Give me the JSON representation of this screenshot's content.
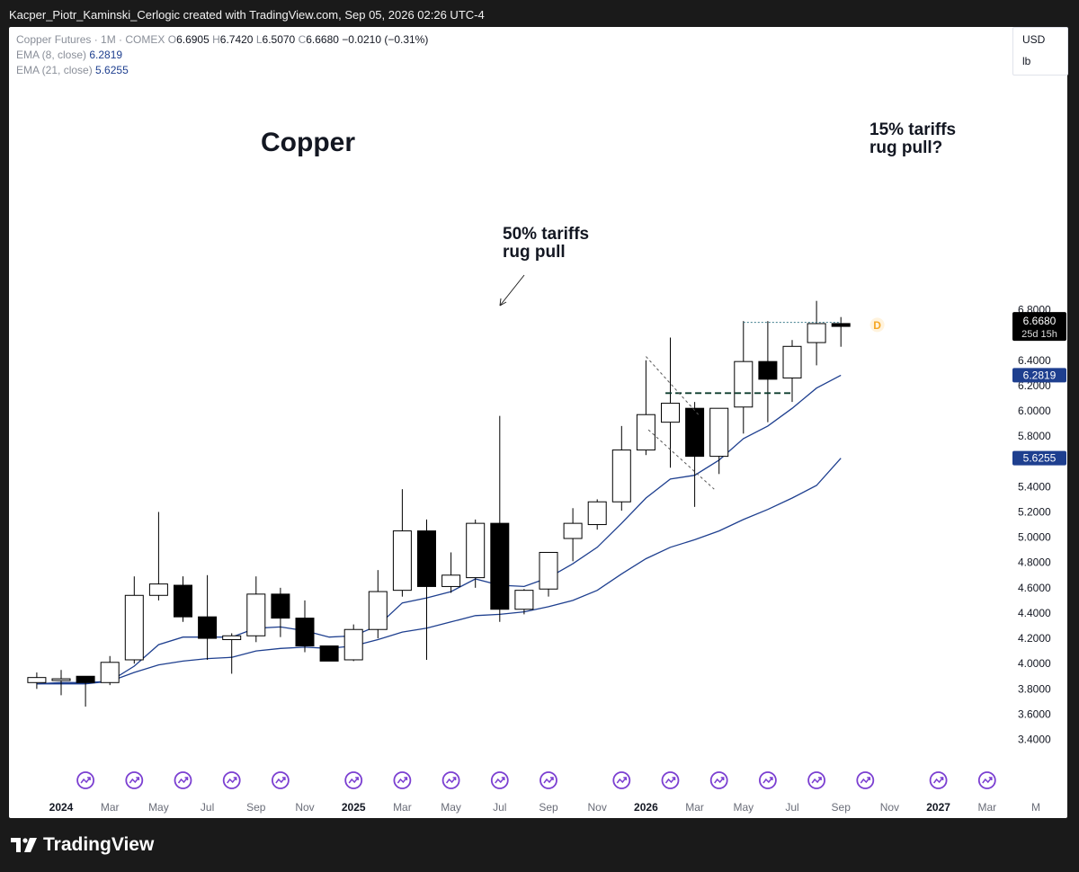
{
  "header": {
    "caption": "Kacper_Piotr_Kaminski_Cerlogic created with TradingView.com, Sep 05, 2026 02:26 UTC-4"
  },
  "legend": {
    "symbol": "Copper Futures · 1M · COMEX",
    "o_label": "O",
    "o": "6.6905",
    "h_label": "H",
    "h": "6.7420",
    "l_label": "L",
    "l": "6.5070",
    "c_label": "C",
    "c": "6.6680",
    "change": "−0.0210 (−0.31%)",
    "ema8_label": "EMA (8, close)",
    "ema8_value": "6.2819",
    "ema21_label": "EMA (21, close)",
    "ema21_value": "5.6255"
  },
  "units": {
    "currency": "USD",
    "unit": "lb"
  },
  "footer": {
    "logo": "TradingView"
  },
  "colors": {
    "ema": "#1e3f8f",
    "bull_fill": "#ffffff",
    "bear_fill": "#000000",
    "event_icon": "#7b3fd1",
    "dividend_badge": "#f5a623"
  },
  "chart_data": {
    "type": "candlestick",
    "title": "Copper",
    "y_ticks": [
      "3.4000",
      "3.6000",
      "3.8000",
      "4.0000",
      "4.2000",
      "4.4000",
      "4.6000",
      "4.8000",
      "5.0000",
      "5.2000",
      "5.4000",
      "5.6000",
      "5.8000",
      "6.0000",
      "6.2000",
      "6.4000",
      "6.6000",
      "6.8000"
    ],
    "ylim": [
      3.36,
      7.1
    ],
    "x_ticks": [
      {
        "label": "2024",
        "month": 0,
        "bold": true
      },
      {
        "label": "Mar",
        "month": 2
      },
      {
        "label": "May",
        "month": 4
      },
      {
        "label": "Jul",
        "month": 6
      },
      {
        "label": "Sep",
        "month": 8
      },
      {
        "label": "Nov",
        "month": 10
      },
      {
        "label": "2025",
        "month": 12,
        "bold": true
      },
      {
        "label": "Mar",
        "month": 14
      },
      {
        "label": "May",
        "month": 16
      },
      {
        "label": "Jul",
        "month": 18
      },
      {
        "label": "Sep",
        "month": 20
      },
      {
        "label": "Nov",
        "month": 22
      },
      {
        "label": "2026",
        "month": 24,
        "bold": true
      },
      {
        "label": "Mar",
        "month": 26
      },
      {
        "label": "May",
        "month": 28
      },
      {
        "label": "Jul",
        "month": 30
      },
      {
        "label": "Sep",
        "month": 32
      },
      {
        "label": "Nov",
        "month": 34
      },
      {
        "label": "2027",
        "month": 36,
        "bold": true
      },
      {
        "label": "Mar",
        "month": 38
      },
      {
        "label": "M",
        "month": 40
      }
    ],
    "candles": [
      {
        "t": -1,
        "o": 3.85,
        "h": 3.93,
        "l": 3.8,
        "c": 3.89
      },
      {
        "t": 0,
        "o": 3.88,
        "h": 3.95,
        "l": 3.75,
        "c": 3.88
      },
      {
        "t": 1,
        "o": 3.9,
        "h": 3.89,
        "l": 3.66,
        "c": 3.85
      },
      {
        "t": 2,
        "o": 3.85,
        "h": 4.06,
        "l": 3.83,
        "c": 4.01
      },
      {
        "t": 3,
        "o": 4.03,
        "h": 4.69,
        "l": 4.0,
        "c": 4.54
      },
      {
        "t": 4,
        "o": 4.54,
        "h": 5.2,
        "l": 4.5,
        "c": 4.63
      },
      {
        "t": 5,
        "o": 4.62,
        "h": 4.69,
        "l": 4.33,
        "c": 4.37
      },
      {
        "t": 6,
        "o": 4.37,
        "h": 4.7,
        "l": 4.03,
        "c": 4.2
      },
      {
        "t": 7,
        "o": 4.19,
        "h": 4.24,
        "l": 3.92,
        "c": 4.22
      },
      {
        "t": 8,
        "o": 4.22,
        "h": 4.69,
        "l": 4.17,
        "c": 4.55
      },
      {
        "t": 9,
        "o": 4.55,
        "h": 4.6,
        "l": 4.21,
        "c": 4.36
      },
      {
        "t": 10,
        "o": 4.36,
        "h": 4.5,
        "l": 4.09,
        "c": 4.14
      },
      {
        "t": 11,
        "o": 4.14,
        "h": 4.13,
        "l": 4.03,
        "c": 4.02
      },
      {
        "t": 12,
        "o": 4.03,
        "h": 4.31,
        "l": 4.02,
        "c": 4.27
      },
      {
        "t": 13,
        "o": 4.27,
        "h": 4.74,
        "l": 4.2,
        "c": 4.57
      },
      {
        "t": 14,
        "o": 4.58,
        "h": 5.38,
        "l": 4.53,
        "c": 5.05
      },
      {
        "t": 15,
        "o": 5.05,
        "h": 5.14,
        "l": 4.03,
        "c": 4.61
      },
      {
        "t": 16,
        "o": 4.61,
        "h": 4.88,
        "l": 4.56,
        "c": 4.7
      },
      {
        "t": 17,
        "o": 4.68,
        "h": 5.14,
        "l": 4.6,
        "c": 5.11
      },
      {
        "t": 18,
        "o": 5.11,
        "h": 5.96,
        "l": 4.33,
        "c": 4.43
      },
      {
        "t": 19,
        "o": 4.43,
        "h": 4.59,
        "l": 4.39,
        "c": 4.58
      },
      {
        "t": 20,
        "o": 4.59,
        "h": 4.87,
        "l": 4.53,
        "c": 4.88
      },
      {
        "t": 21,
        "o": 4.99,
        "h": 5.23,
        "l": 4.81,
        "c": 5.11
      },
      {
        "t": 22,
        "o": 5.1,
        "h": 5.3,
        "l": 5.06,
        "c": 5.28
      },
      {
        "t": 23,
        "o": 5.28,
        "h": 5.88,
        "l": 5.21,
        "c": 5.69
      },
      {
        "t": 24,
        "o": 5.69,
        "h": 6.4,
        "l": 5.65,
        "c": 5.97
      },
      {
        "t": 25,
        "o": 5.91,
        "h": 6.58,
        "l": 5.55,
        "c": 6.06
      },
      {
        "t": 26,
        "o": 6.02,
        "h": 6.07,
        "l": 5.24,
        "c": 5.64
      },
      {
        "t": 27,
        "o": 5.64,
        "h": 6.02,
        "l": 5.5,
        "c": 6.02
      },
      {
        "t": 28,
        "o": 6.03,
        "h": 6.71,
        "l": 5.82,
        "c": 6.39
      },
      {
        "t": 29,
        "o": 6.39,
        "h": 6.71,
        "l": 5.91,
        "c": 6.25
      },
      {
        "t": 30,
        "o": 6.26,
        "h": 6.56,
        "l": 6.07,
        "c": 6.51
      },
      {
        "t": 31,
        "o": 6.54,
        "h": 6.87,
        "l": 6.36,
        "c": 6.69
      },
      {
        "t": 32,
        "o": 6.6905,
        "h": 6.742,
        "l": 6.507,
        "c": 6.668
      }
    ],
    "series": [
      {
        "name": "EMA (8, close)",
        "x": [
          -1,
          0,
          1,
          2,
          3,
          4,
          5,
          6,
          7,
          8,
          9,
          10,
          11,
          12,
          13,
          14,
          15,
          16,
          17,
          18,
          19,
          20,
          21,
          22,
          23,
          24,
          25,
          26,
          27,
          28,
          29,
          30,
          31,
          32
        ],
        "values": [
          3.84,
          3.85,
          3.85,
          3.86,
          3.98,
          4.15,
          4.21,
          4.21,
          4.21,
          4.28,
          4.29,
          4.26,
          4.21,
          4.22,
          4.3,
          4.48,
          4.52,
          4.57,
          4.67,
          4.62,
          4.61,
          4.68,
          4.79,
          4.92,
          5.11,
          5.31,
          5.46,
          5.49,
          5.61,
          5.78,
          5.88,
          6.02,
          6.18,
          6.2819
        ]
      },
      {
        "name": "EMA (21, close)",
        "x": [
          -1,
          0,
          1,
          2,
          3,
          4,
          5,
          6,
          7,
          8,
          9,
          10,
          11,
          12,
          13,
          14,
          15,
          16,
          17,
          18,
          19,
          20,
          21,
          22,
          23,
          24,
          25,
          26,
          27,
          28,
          29,
          30,
          31,
          32
        ],
        "values": [
          3.84,
          3.84,
          3.84,
          3.86,
          3.93,
          3.99,
          4.02,
          4.04,
          4.05,
          4.1,
          4.12,
          4.13,
          4.12,
          4.14,
          4.19,
          4.25,
          4.28,
          4.33,
          4.38,
          4.39,
          4.41,
          4.45,
          4.5,
          4.58,
          4.71,
          4.83,
          4.92,
          4.98,
          5.05,
          5.14,
          5.22,
          5.31,
          5.41,
          5.6255
        ]
      }
    ],
    "last_price_label": {
      "value": "6.6680",
      "countdown": "25d 15h"
    },
    "annotations": [
      {
        "text": [
          "50% tariffs",
          "rug pull"
        ],
        "month": 18,
        "price": 5.8
      },
      {
        "text": [
          "15% tariffs",
          "rug pull?"
        ],
        "month": 34,
        "price": 6.6
      }
    ],
    "levels": [
      {
        "price": 6.7,
        "from": 28,
        "to": 32,
        "style": "dotted"
      },
      {
        "price": 6.14,
        "from": 24.8,
        "to": 30,
        "style": "dashed"
      }
    ],
    "trendlines": [
      {
        "from": [
          24,
          6.43
        ],
        "to": [
          26.2,
          5.96
        ]
      },
      {
        "from": [
          24.1,
          5.85
        ],
        "to": [
          26.8,
          5.38
        ]
      }
    ],
    "event_months": [
      1,
      3,
      5,
      7,
      9,
      12,
      14,
      16,
      18,
      20,
      23,
      25,
      27,
      29,
      31,
      33,
      36,
      38
    ],
    "dividend_marker": {
      "month": 32.9,
      "price": 6.68,
      "label": "D"
    }
  }
}
